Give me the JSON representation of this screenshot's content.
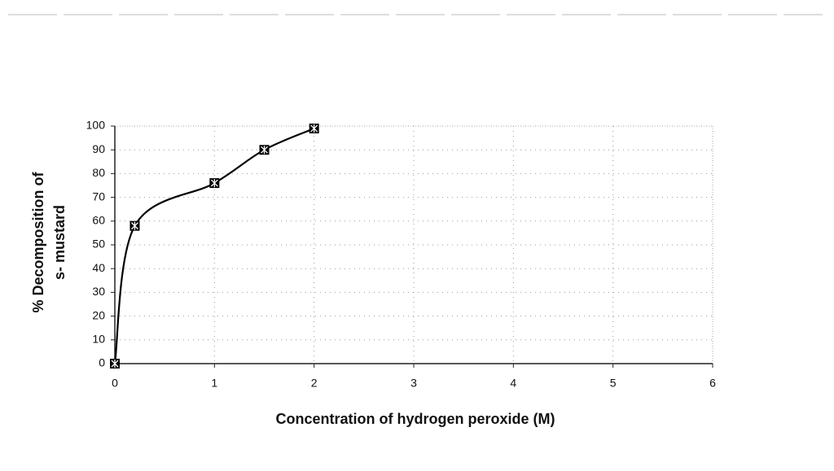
{
  "chart_data": {
    "type": "line",
    "xlabel": "Concentration   of hydrogen peroxide (M)",
    "ylabel": [
      "% Decomposition of",
      "s- mustard"
    ],
    "x": [
      0,
      0.2,
      1,
      1.5,
      2
    ],
    "series": [
      {
        "color": "#000000",
        "values": [
          0,
          58,
          76,
          90,
          99
        ]
      }
    ],
    "xlim": [
      0,
      6
    ],
    "xticks": [
      0,
      1,
      2,
      3,
      4,
      5,
      6
    ],
    "ylim": [
      0,
      100
    ],
    "yticks": [
      0,
      10,
      20,
      30,
      40,
      50,
      60,
      70,
      80,
      90,
      100
    ],
    "grid": true
  }
}
